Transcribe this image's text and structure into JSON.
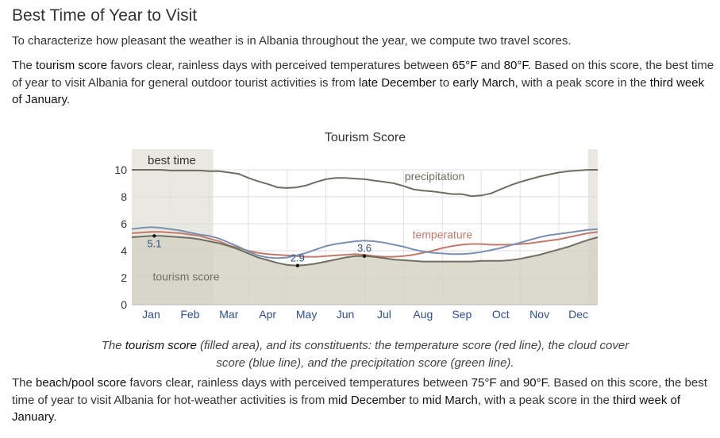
{
  "heading": "Best Time of Year to Visit",
  "intro": "To characterize how pleasant the weather is in Albania throughout the year, we compute two travel scores.",
  "tourism_para": {
    "t1": "The ",
    "h1": "tourism score",
    "t2": " favors clear, rainless days with perceived temperatures between ",
    "h2": "65°F",
    "t3": " and ",
    "h3": "80°F",
    "t4": ". Based on this score, the best time of year to visit Albania for general outdoor tourist activities is from ",
    "h4": "late December",
    "t5": " to ",
    "h5": "early March",
    "t6": ", with a peak score in the ",
    "h6": "third week of January",
    "t7": "."
  },
  "caption": {
    "t1": "The ",
    "h1": "tourism score",
    "t2": " (filled area), and its constituents: the temperature score (red line), the cloud cover score (blue line), and the precipitation score (green line)."
  },
  "beach_para": {
    "t1": "The ",
    "h1": "beach/pool score",
    "t2": " favors clear, rainless days with perceived temperatures between ",
    "h2": "75°F",
    "t3": " and ",
    "h3": "90°F",
    "t4": ". Based on this score, the best time of year to visit Albania for hot-weather activities is from ",
    "h4": "mid December",
    "t5": " to ",
    "h5": "mid March",
    "t6": ", with a peak score in the ",
    "h6": "third week of January",
    "t7": "."
  },
  "chart_data": {
    "type": "area",
    "title": "Tourism Score",
    "categories": [
      "Jan",
      "Feb",
      "Mar",
      "Apr",
      "May",
      "Jun",
      "Jul",
      "Aug",
      "Sep",
      "Oct",
      "Nov",
      "Dec"
    ],
    "xlim": [
      0,
      12
    ],
    "ylim": [
      0,
      10
    ],
    "yticks": [
      0,
      2,
      4,
      6,
      8,
      10
    ],
    "grid": true,
    "best_time_label": "best time",
    "best_time_ranges": [
      [
        0,
        2.1
      ],
      [
        11.75,
        12
      ]
    ],
    "x": [
      0,
      0.25,
      0.5,
      0.75,
      1,
      1.25,
      1.5,
      1.75,
      2,
      2.25,
      2.5,
      2.75,
      3,
      3.25,
      3.5,
      3.75,
      4,
      4.25,
      4.5,
      4.75,
      5,
      5.25,
      5.5,
      5.75,
      6,
      6.25,
      6.5,
      6.75,
      7,
      7.25,
      7.5,
      7.75,
      8,
      8.25,
      8.5,
      8.75,
      9,
      9.25,
      9.5,
      9.75,
      10,
      10.25,
      10.5,
      10.75,
      11,
      11.25,
      11.5,
      11.75,
      12
    ],
    "series": [
      {
        "name": "tourism score",
        "color": "#6e6e62",
        "fill": "#d4d4c4",
        "values": [
          5.0,
          5.05,
          5.1,
          5.1,
          5.05,
          5.0,
          4.95,
          4.85,
          4.7,
          4.55,
          4.35,
          4.1,
          3.8,
          3.5,
          3.3,
          3.1,
          2.95,
          2.9,
          2.95,
          3.05,
          3.2,
          3.35,
          3.5,
          3.6,
          3.6,
          3.55,
          3.45,
          3.35,
          3.3,
          3.25,
          3.2,
          3.2,
          3.2,
          3.2,
          3.2,
          3.2,
          3.25,
          3.25,
          3.25,
          3.3,
          3.4,
          3.55,
          3.7,
          3.9,
          4.1,
          4.3,
          4.55,
          4.8,
          5.0
        ]
      },
      {
        "name": "temperature",
        "color": "#c27a6c",
        "values": [
          5.3,
          5.35,
          5.4,
          5.4,
          5.35,
          5.3,
          5.2,
          5.1,
          4.9,
          4.7,
          4.4,
          4.2,
          4.0,
          3.85,
          3.75,
          3.7,
          3.65,
          3.6,
          3.55,
          3.55,
          3.6,
          3.65,
          3.7,
          3.75,
          3.7,
          3.6,
          3.55,
          3.55,
          3.6,
          3.7,
          3.85,
          4.0,
          4.2,
          4.35,
          4.45,
          4.5,
          4.5,
          4.45,
          4.45,
          4.45,
          4.5,
          4.55,
          4.65,
          4.75,
          4.85,
          5.0,
          5.15,
          5.3,
          5.4
        ]
      },
      {
        "name": "cloud cover",
        "color": "#7b8fb0",
        "values": [
          5.6,
          5.7,
          5.75,
          5.7,
          5.6,
          5.5,
          5.35,
          5.2,
          5.1,
          4.9,
          4.6,
          4.3,
          3.95,
          3.65,
          3.5,
          3.45,
          3.5,
          3.65,
          3.85,
          4.1,
          4.35,
          4.5,
          4.6,
          4.7,
          4.75,
          4.7,
          4.6,
          4.45,
          4.3,
          4.1,
          3.95,
          3.85,
          3.8,
          3.75,
          3.75,
          3.8,
          3.9,
          4.05,
          4.2,
          4.4,
          4.6,
          4.8,
          5.0,
          5.15,
          5.25,
          5.35,
          5.45,
          5.55,
          5.6
        ]
      },
      {
        "name": "precipitation",
        "color": "#6e6e62",
        "values": [
          10.0,
          10.0,
          10.0,
          10.0,
          9.95,
          9.95,
          9.95,
          9.95,
          9.9,
          9.9,
          9.8,
          9.7,
          9.4,
          9.15,
          8.95,
          8.7,
          8.65,
          8.7,
          8.85,
          9.1,
          9.3,
          9.4,
          9.4,
          9.35,
          9.3,
          9.2,
          9.1,
          9.0,
          8.8,
          8.55,
          8.45,
          8.4,
          8.3,
          8.2,
          8.2,
          8.05,
          8.1,
          8.25,
          8.55,
          8.85,
          9.1,
          9.3,
          9.5,
          9.65,
          9.8,
          9.9,
          9.95,
          10.0,
          10.0
        ]
      }
    ],
    "annotations": [
      {
        "text": "5.1",
        "x": 0.58,
        "y": 5.1,
        "color": "#2f4e87"
      },
      {
        "text": "2.9",
        "x": 4.27,
        "y": 2.9,
        "color": "#2f4e87"
      },
      {
        "text": "3.6",
        "x": 5.99,
        "y": 3.6,
        "color": "#2f4e87"
      }
    ],
    "series_labels": [
      {
        "text": "precipitation",
        "x": 7.8,
        "y": 9.25,
        "color": "#6e6e62"
      },
      {
        "text": "temperature",
        "x": 8.0,
        "y": 4.9,
        "color": "#c27a6c"
      },
      {
        "text": "tourism score",
        "x": 1.4,
        "y": 1.8,
        "color": "#6e6e62"
      }
    ]
  }
}
